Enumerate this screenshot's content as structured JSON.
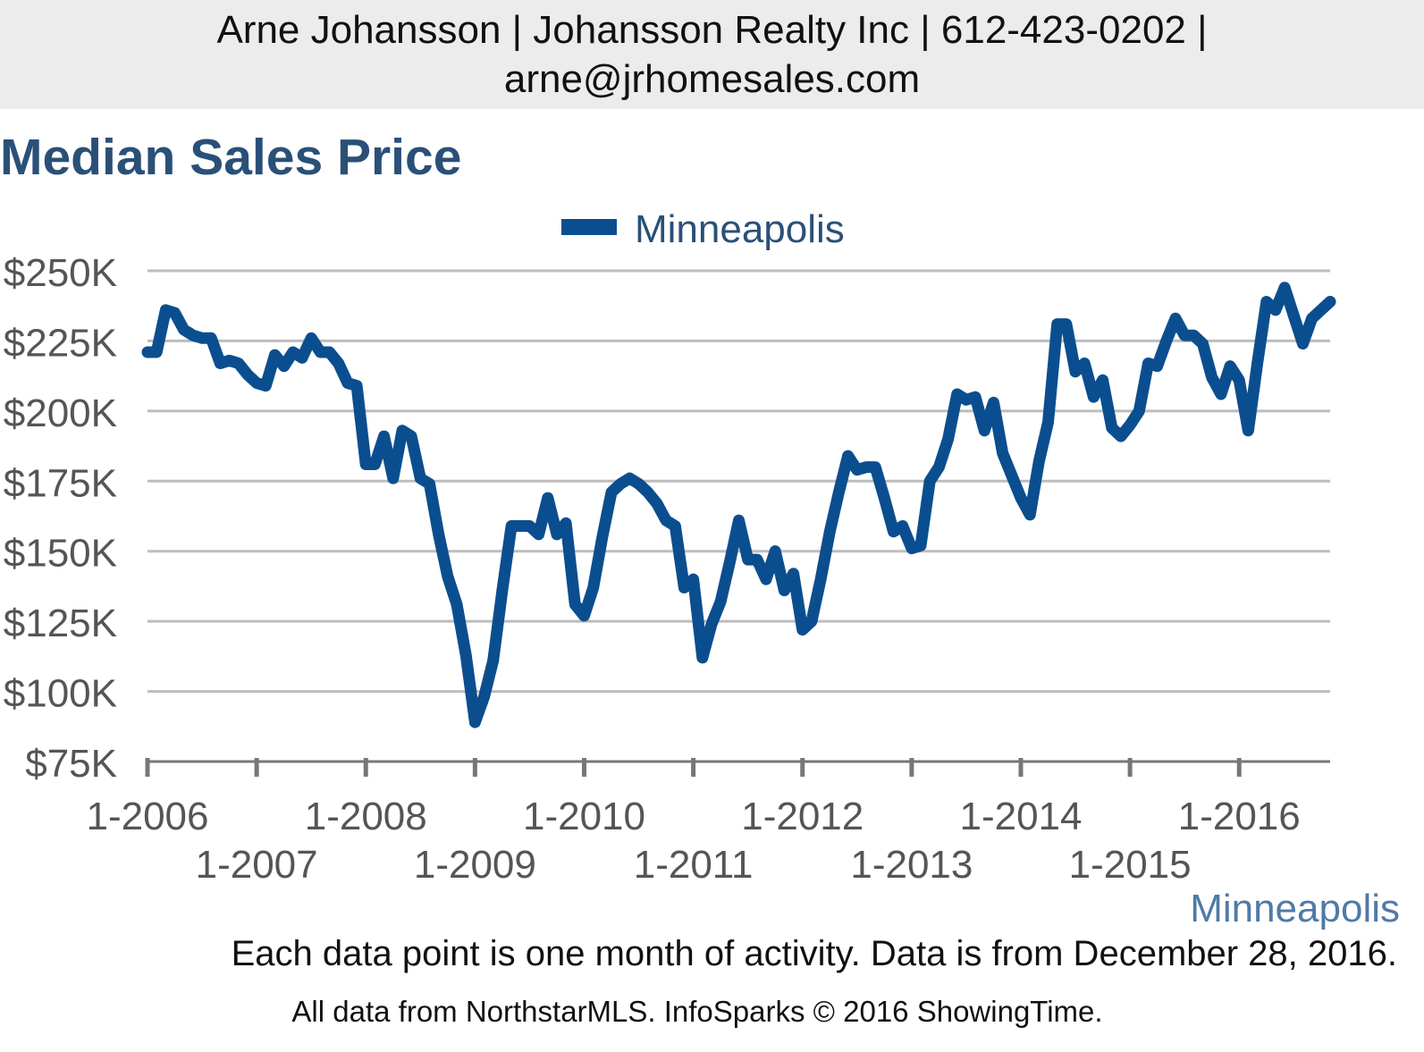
{
  "header": {
    "line1": "Arne Johansson | Johansson Realty Inc | 612-423-0202 |",
    "line2": "arne@jrhomesales.com"
  },
  "page_title": "Median Sales Price",
  "footer": {
    "note": "Each data point is one month of activity. Data is from December 28, 2016.",
    "copyright": "All data from NorthstarMLS. InfoSparks © 2016 ShowingTime."
  },
  "colors": {
    "series": "#0b4e8f",
    "title": "#2a5078",
    "grid": "#bdbdbd",
    "axis": "#555555",
    "region": "#4f7aa8",
    "header_bg": "#ececec"
  },
  "chart_data": {
    "type": "line",
    "title": "Median Sales Price",
    "region_label": "Minneapolis",
    "legend_position": "top-center",
    "grid": true,
    "ylim": [
      75000,
      250000
    ],
    "y_ticks": [
      75000,
      100000,
      125000,
      150000,
      175000,
      200000,
      225000,
      250000
    ],
    "y_tick_labels": [
      "$75K",
      "$100K",
      "$125K",
      "$150K",
      "$175K",
      "$200K",
      "$225K",
      "$250K"
    ],
    "x_tick_labels": [
      "1-2006",
      "1-2007",
      "1-2008",
      "1-2009",
      "1-2010",
      "1-2011",
      "1-2012",
      "1-2013",
      "1-2014",
      "1-2015",
      "1-2016"
    ],
    "x_start": "2006-01",
    "x_end": "2016-11",
    "series": [
      {
        "name": "Minneapolis",
        "values": [
          221000,
          221000,
          236000,
          235000,
          229000,
          227000,
          226000,
          226000,
          217000,
          218000,
          217000,
          213000,
          210000,
          209000,
          220000,
          216000,
          221000,
          219000,
          226000,
          221000,
          221000,
          217000,
          210000,
          209000,
          181000,
          181000,
          191000,
          176000,
          193000,
          191000,
          176000,
          174000,
          156000,
          141000,
          131000,
          113000,
          89000,
          98000,
          111000,
          136000,
          159000,
          159000,
          159000,
          156000,
          169000,
          156000,
          160000,
          131000,
          127000,
          137000,
          155000,
          171000,
          174000,
          176000,
          174000,
          171000,
          167000,
          161000,
          159000,
          137000,
          140000,
          112000,
          124000,
          132000,
          146000,
          161000,
          147000,
          147000,
          140000,
          150000,
          136000,
          142000,
          122000,
          125000,
          140000,
          157000,
          171000,
          184000,
          179000,
          180000,
          180000,
          169000,
          157000,
          159000,
          151000,
          152000,
          175000,
          180000,
          190000,
          206000,
          204000,
          205000,
          193000,
          203000,
          185000,
          177000,
          169000,
          163000,
          182000,
          196000,
          231000,
          231000,
          214000,
          217000,
          205000,
          211000,
          194000,
          191000,
          195000,
          200000,
          217000,
          216000,
          225000,
          233000,
          227000,
          227000,
          224000,
          212000,
          206000,
          216000,
          211000,
          193000,
          217000,
          239000,
          236000,
          244000,
          234000,
          224000,
          233000,
          236000,
          239000
        ]
      }
    ]
  }
}
